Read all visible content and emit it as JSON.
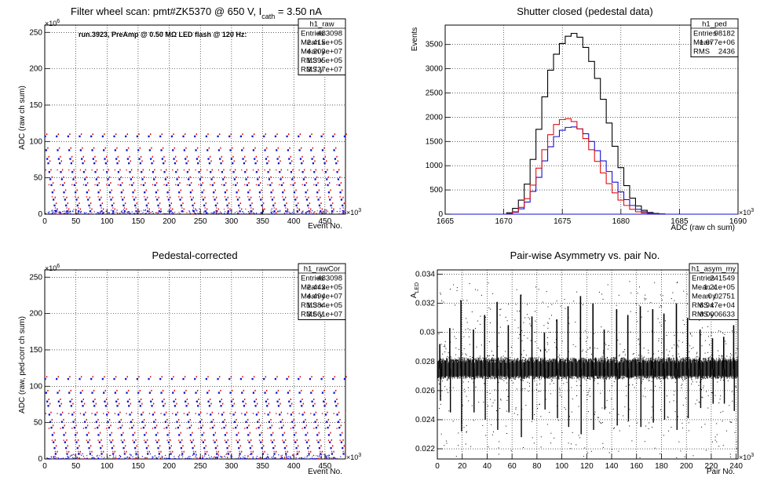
{
  "charts": [
    {
      "title": "Filter wheel scan: pmt#ZK5370 @   650 V, I",
      "title_sub": "cath",
      "title_tail": " = 3.50 nA",
      "annotation": "run.3923, PreAmp @ 0.50 MΩ LED flash @  120 Hz:",
      "xlabel": "Event No.",
      "ylabel": "ADC (raw ch sum)",
      "xexp": "×10",
      "xexp_pow": "3",
      "yexp": "×10",
      "yexp_pow": "6",
      "xticks": [
        "0",
        "50",
        "100",
        "150",
        "200",
        "250",
        "300",
        "350",
        "400",
        "450"
      ],
      "yticks": [
        "0",
        "50",
        "100",
        "150",
        "200",
        "250"
      ],
      "stats_name": "h1_raw",
      "stats": [
        {
          "label": "Entries",
          "value": "483098"
        },
        {
          "label": "Mean x",
          "value": "2.415e+05"
        },
        {
          "label": "Mean y",
          "value": "4.203e+07"
        },
        {
          "label": "RMS x",
          "value": "1.395e+05"
        },
        {
          "label": "RMS y",
          "value": "3.727e+07"
        }
      ]
    },
    {
      "title": "Shutter closed (pedestal data)",
      "xlabel": "ADC (raw ch sum)",
      "ylabel": "Events",
      "xexp": "×10",
      "xexp_pow": "3",
      "xticks": [
        "1665",
        "1670",
        "1675",
        "1680",
        "1685",
        "1690"
      ],
      "yticks": [
        "0",
        "500",
        "1000",
        "1500",
        "2000",
        "2500",
        "3000",
        "3500"
      ],
      "stats_name": "h1_ped",
      "stats": [
        {
          "label": "Entries",
          "value": "98182"
        },
        {
          "label": "Mean",
          "value": "1.677e+06"
        },
        {
          "label": "RMS",
          "value": "2436"
        }
      ]
    },
    {
      "title": "Pedestal-corrected",
      "xlabel": "Event No.",
      "ylabel": "ADC (raw, ped-corr ch sum)",
      "xexp": "×10",
      "xexp_pow": "3",
      "yexp": "×10",
      "yexp_pow": "6",
      "xticks": [
        "0",
        "50",
        "100",
        "150",
        "200",
        "250",
        "300",
        "350",
        "400",
        "450"
      ],
      "yticks": [
        "0",
        "50",
        "100",
        "150",
        "200",
        "250"
      ],
      "stats_name": "h1_rawCor",
      "stats": [
        {
          "label": "Entries",
          "value": "483098"
        },
        {
          "label": "Mean x",
          "value": "2.443e+05"
        },
        {
          "label": "Mean y",
          "value": "4.494e+07"
        },
        {
          "label": "RMS x",
          "value": "1.384e+05"
        },
        {
          "label": "RMS y",
          "value": "3.661e+07"
        }
      ]
    },
    {
      "title": "Pair-wise Asymmetry vs. pair No.",
      "xlabel": "Pair No.",
      "ylabel": "A",
      "ylabel_sub": "LED",
      "xexp": "×10",
      "xexp_pow": "3",
      "xticks": [
        "0",
        "20",
        "40",
        "60",
        "80",
        "100",
        "120",
        "140",
        "160",
        "180",
        "200",
        "220",
        "240"
      ],
      "yticks": [
        "0.022",
        "0.024",
        "0.026",
        "0.028",
        "0.03",
        "0.032",
        "0.034"
      ],
      "stats_name": "h1_asym_my",
      "stats": [
        {
          "label": "Entries",
          "value": "241549"
        },
        {
          "label": "Mean x",
          "value": "1.21e+05"
        },
        {
          "label": "Mean y",
          "value": "0.02751"
        },
        {
          "label": "RMS x",
          "value": "6.947e+04"
        },
        {
          "label": "RMS y",
          "value": "0.0006633"
        }
      ]
    }
  ],
  "chart_data": [
    {
      "type": "scatter",
      "title": "Filter wheel scan: pmt#ZK5370 @   650 V, Icath = 3.50 nA",
      "xlabel": "Event No.",
      "ylabel": "ADC (raw ch sum)",
      "x_unit": "×10^3",
      "y_unit": "×10^6",
      "xlim": [
        0,
        483
      ],
      "ylim": [
        0,
        260
      ],
      "grid": true,
      "pattern_period_k": 18.5,
      "level_sequence_e6": [
        107,
        88,
        76,
        70,
        58,
        48,
        40,
        30,
        20,
        12,
        4
      ],
      "colors": {
        "primary": "#1010d0",
        "secondary": "#e01010",
        "tertiary": "#707070"
      },
      "legend": "top-right"
    },
    {
      "type": "line",
      "title": "Shutter closed (pedestal data)",
      "xlabel": "ADC (raw ch sum)",
      "ylabel": "Events",
      "x_unit": "×10^3",
      "xlim": [
        1665,
        1690
      ],
      "ylim": [
        0,
        3900
      ],
      "grid": true,
      "x": [
        1670.5,
        1671,
        1671.5,
        1672,
        1672.5,
        1673,
        1673.5,
        1674,
        1674.5,
        1675,
        1675.5,
        1676,
        1676.5,
        1677,
        1677.5,
        1678,
        1678.5,
        1679,
        1679.5,
        1680,
        1680.5,
        1681,
        1681.5,
        1682,
        1682.5,
        1683,
        1683.5,
        1684
      ],
      "series": [
        {
          "values": [
            30,
            120,
            290,
            620,
            1130,
            1750,
            2420,
            2970,
            3300,
            3520,
            3670,
            3730,
            3650,
            3440,
            3150,
            2800,
            2370,
            1880,
            1400,
            960,
            590,
            330,
            170,
            80,
            35,
            15,
            5,
            0
          ],
          "color": "#000000"
        },
        {
          "values": [
            10,
            40,
            110,
            250,
            470,
            760,
            1100,
            1390,
            1600,
            1730,
            1790,
            1800,
            1760,
            1660,
            1500,
            1310,
            1100,
            880,
            660,
            460,
            300,
            180,
            100,
            50,
            20,
            8,
            3,
            0
          ],
          "color": "#1010d0"
        },
        {
          "values": [
            10,
            50,
            140,
            320,
            600,
            950,
            1330,
            1640,
            1850,
            1950,
            1970,
            1910,
            1760,
            1560,
            1330,
            1090,
            850,
            630,
            440,
            290,
            180,
            100,
            50,
            25,
            10,
            4,
            2,
            0
          ],
          "color": "#e01010"
        }
      ]
    },
    {
      "type": "scatter",
      "title": "Pedestal-corrected",
      "xlabel": "Event No.",
      "ylabel": "ADC (raw, ped-corr ch sum)",
      "x_unit": "×10^3",
      "y_unit": "×10^6",
      "xlim": [
        0,
        483
      ],
      "ylim": [
        0,
        260
      ],
      "grid": true,
      "pattern_period_k": 18.5,
      "level_sequence_e6": [
        110,
        91,
        79,
        73,
        61,
        51,
        43,
        33,
        23,
        15,
        7
      ],
      "colors": {
        "primary": "#1010d0",
        "secondary": "#e01010",
        "tertiary": "#707070"
      },
      "legend": "top-right"
    },
    {
      "type": "scatter",
      "title": "Pair-wise Asymmetry vs. pair No.",
      "xlabel": "Pair No.",
      "ylabel": "A_LED",
      "x_unit": "×10^3",
      "xlim": [
        0,
        241.5
      ],
      "ylim": [
        0.0213,
        0.0343
      ],
      "grid": true,
      "band_center": 0.0275,
      "band_halfwidth": 0.0006,
      "spike_x_k": [
        2,
        10,
        19,
        29,
        38,
        48,
        57,
        67,
        76,
        86,
        96,
        105,
        115,
        125,
        134,
        144,
        153,
        163,
        173,
        182,
        192,
        201,
        211,
        221,
        230,
        238
      ],
      "spike_top": [
        0.0292,
        0.0303,
        0.0322,
        0.0302,
        0.0312,
        0.0321,
        0.0305,
        0.0326,
        0.0311,
        0.03,
        0.0309,
        0.0318,
        0.0325,
        0.032,
        0.0302,
        0.0316,
        0.0312,
        0.0318,
        0.0316,
        0.0313,
        0.032,
        0.031,
        0.0302,
        0.0296,
        0.0297,
        0.0305
      ],
      "spike_bottom": [
        0.0253,
        0.0245,
        0.0232,
        0.0245,
        0.024,
        0.0233,
        0.0245,
        0.0228,
        0.024,
        0.0247,
        0.0241,
        0.0235,
        0.023,
        0.0233,
        0.0247,
        0.0236,
        0.0239,
        0.0235,
        0.0238,
        0.024,
        0.0233,
        0.0241,
        0.0248,
        0.0251,
        0.0251,
        0.0246
      ],
      "color": "#000000",
      "legend": "top-right"
    }
  ]
}
